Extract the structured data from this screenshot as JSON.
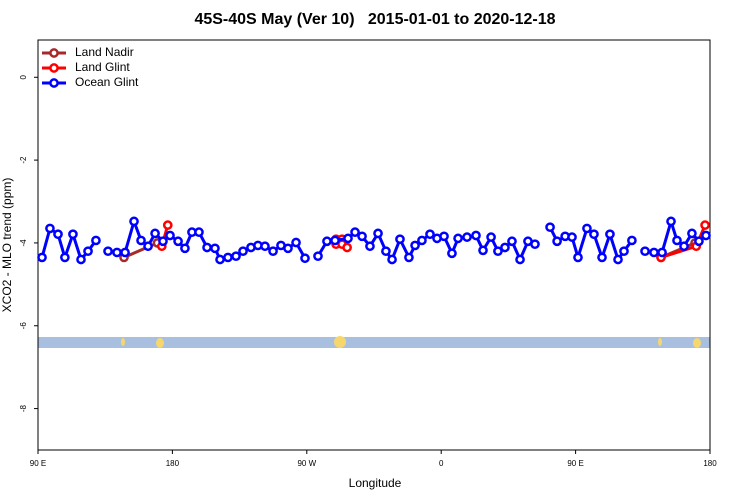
{
  "chart_data": {
    "type": "line",
    "title": "45S-40S May (Ver 10)   2015-01-01 to 2020-12-18",
    "x_label": "Longitude",
    "y_label": "XCO2 - MLO trend (ppm)",
    "xlim": [
      90,
      540
    ],
    "ylim": [
      -9,
      0.9
    ],
    "xticks": [
      {
        "value": 90,
        "label": "90 E"
      },
      {
        "value": 180,
        "label": "180"
      },
      {
        "value": 270,
        "label": "90 W"
      },
      {
        "value": 360,
        "label": "0"
      },
      {
        "value": 450,
        "label": "90 E"
      },
      {
        "value": 540,
        "label": "180"
      }
    ],
    "yticks": [
      0,
      -2,
      -4,
      -6,
      -8
    ],
    "legend": "top-left",
    "series": [
      {
        "name": "Land Nadir",
        "color": "#a52a2a",
        "x": [
          147.6,
          170,
          null,
          507.2,
          530
        ],
        "values": [
          -4.35,
          -4.0,
          null,
          -4.35,
          -4.0
        ]
      },
      {
        "name": "Land Glint",
        "color": "#ff0000",
        "x": [
          172.9,
          176.9,
          null,
          289.6,
          293.6,
          289.6,
          293.6,
          297,
          null,
          507.2,
          530.8,
          536.7
        ],
        "values": [
          -4.08,
          -3.57,
          null,
          -3.91,
          -3.91,
          -4.03,
          -4.03,
          -4.11,
          null,
          -4.35,
          -4.08,
          -3.57
        ]
      },
      {
        "name": "Ocean Glint",
        "color": "#0000ff",
        "x": [
          92.7,
          98,
          103.4,
          108,
          113.4,
          118.8,
          123.5,
          128.8,
          null,
          136.9,
          142.9,
          148.3,
          154.3,
          159,
          163.7,
          168.4,
          173.7,
          178.4,
          183.8,
          188.4,
          193.1,
          197.8,
          203.2,
          208.5,
          211.9,
          217.2,
          222.6,
          227.3,
          232.6,
          237.3,
          242,
          247.4,
          252.7,
          257.4,
          262.8,
          268.8,
          null,
          277.5,
          283.5,
          288.9,
          297.6,
          302.3,
          307,
          312.3,
          317.7,
          323,
          327.1,
          332.4,
          338.4,
          342.5,
          347.1,
          352.5,
          357.2,
          361.9,
          367.2,
          371.3,
          377.3,
          383.3,
          388,
          393.4,
          398,
          402.7,
          407.4,
          412.8,
          418.1,
          422.8,
          null,
          432.9,
          437.6,
          443,
          447.6,
          451.6,
          457.6,
          462.3,
          467.7,
          473,
          478.4,
          482.4,
          487.7,
          null,
          496.5,
          502.5,
          507.9,
          513.9,
          517.9,
          522.6,
          527.9,
          532.6,
          537.3
        ],
        "values": [
          -4.35,
          -3.65,
          -3.79,
          -4.35,
          -3.79,
          -4.4,
          -4.2,
          -3.94,
          null,
          -4.2,
          -4.23,
          -4.23,
          -3.48,
          -3.94,
          -4.08,
          -3.77,
          -3.96,
          -3.82,
          -3.96,
          -4.13,
          -3.74,
          -3.74,
          -4.11,
          -4.13,
          -4.4,
          -4.35,
          -4.32,
          -4.2,
          -4.11,
          -4.06,
          -4.08,
          -4.2,
          -4.06,
          -4.13,
          -3.99,
          -4.37,
          null,
          -4.32,
          -3.96,
          -3.94,
          -3.89,
          -3.74,
          -3.84,
          -4.08,
          -3.77,
          -4.2,
          -4.4,
          -3.91,
          -4.35,
          -4.06,
          -3.94,
          -3.79,
          -3.89,
          -3.84,
          -4.25,
          -3.89,
          -3.86,
          -3.82,
          -4.18,
          -3.86,
          -4.2,
          -4.11,
          -3.96,
          -4.4,
          -3.96,
          -4.03,
          null,
          -3.62,
          -3.96,
          -3.84,
          -3.86,
          -4.35,
          -3.65,
          -3.79,
          -4.35,
          -3.79,
          -4.4,
          -4.2,
          -3.94,
          null,
          -4.2,
          -4.23,
          -4.23,
          -3.48,
          -3.94,
          -4.08,
          -3.77,
          -3.96,
          -3.82
        ]
      }
    ]
  }
}
